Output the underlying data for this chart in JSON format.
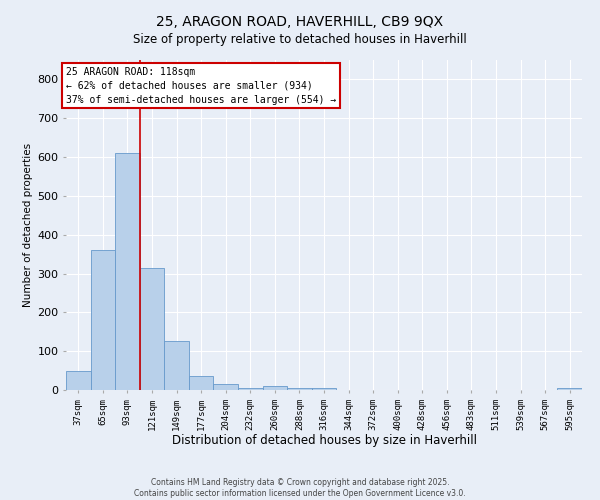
{
  "title1": "25, ARAGON ROAD, HAVERHILL, CB9 9QX",
  "title2": "Size of property relative to detached houses in Haverhill",
  "xlabel": "Distribution of detached houses by size in Haverhill",
  "ylabel": "Number of detached properties",
  "footer1": "Contains HM Land Registry data © Crown copyright and database right 2025.",
  "footer2": "Contains public sector information licensed under the Open Government Licence v3.0.",
  "annotation_title": "25 ARAGON ROAD: 118sqm",
  "annotation_line2": "← 62% of detached houses are smaller (934)",
  "annotation_line3": "37% of semi-detached houses are larger (554) →",
  "bar_color": "#b8d0ea",
  "bar_edge_color": "#6699cc",
  "vline_color": "#cc0000",
  "vline_x_idx": 2.5,
  "bg_color": "#e8eef7",
  "grid_color": "#ffffff",
  "categories": [
    "37sqm",
    "65sqm",
    "93sqm",
    "121sqm",
    "149sqm",
    "177sqm",
    "204sqm",
    "232sqm",
    "260sqm",
    "288sqm",
    "316sqm",
    "344sqm",
    "372sqm",
    "400sqm",
    "428sqm",
    "456sqm",
    "483sqm",
    "511sqm",
    "539sqm",
    "567sqm",
    "595sqm"
  ],
  "values": [
    50,
    360,
    610,
    315,
    125,
    35,
    15,
    5,
    10,
    5,
    5,
    0,
    0,
    0,
    0,
    0,
    0,
    0,
    0,
    0,
    5
  ],
  "ylim": [
    0,
    850
  ],
  "yticks": [
    0,
    100,
    200,
    300,
    400,
    500,
    600,
    700,
    800
  ]
}
